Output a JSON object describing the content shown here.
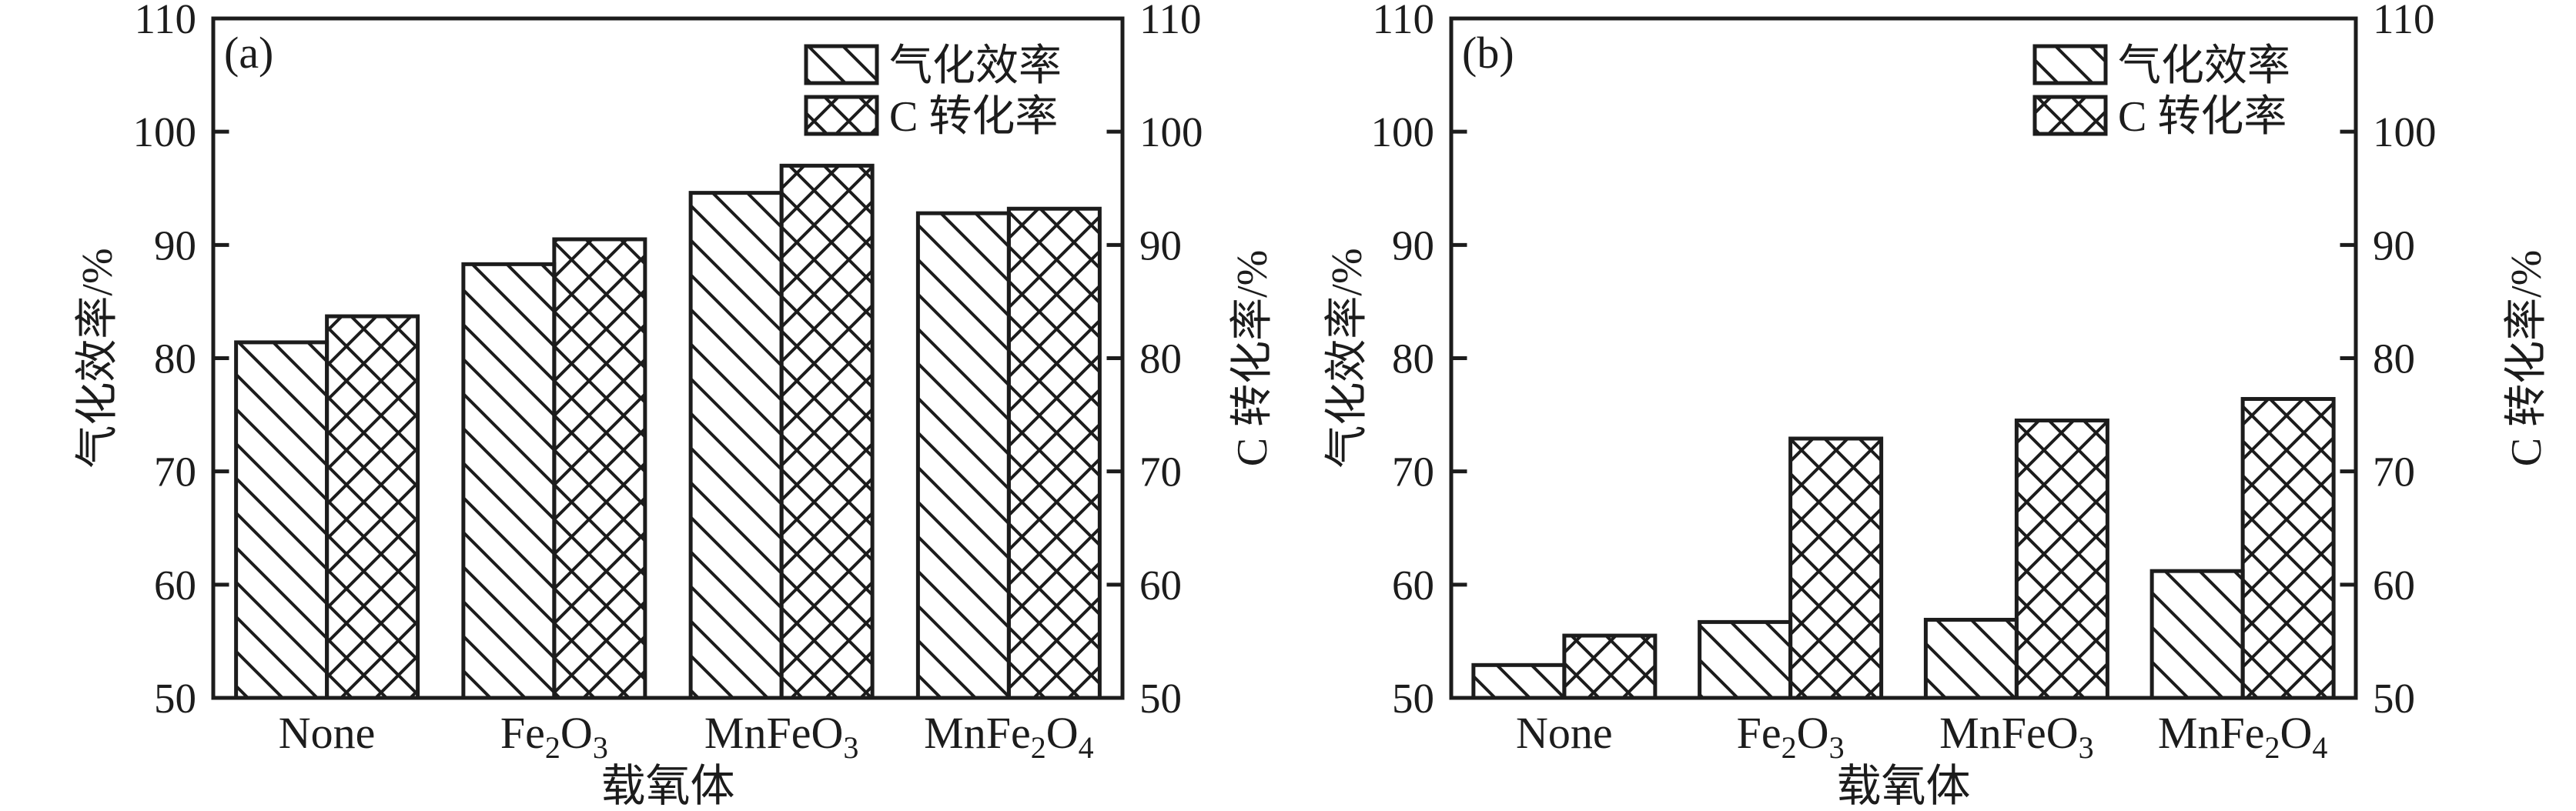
{
  "figure": {
    "background": "#ffffff",
    "ink": "#1c1c1c"
  },
  "chart_data": [
    {
      "type": "bar",
      "panel_label": "(a)",
      "categories": [
        "None",
        "Fe2O3",
        "MnFeO3",
        "MnFe2O4"
      ],
      "categories_rich": [
        [
          {
            "t": "None"
          }
        ],
        [
          {
            "t": "Fe"
          },
          {
            "t": "2",
            "sub": true
          },
          {
            "t": "O"
          },
          {
            "t": "3",
            "sub": true
          }
        ],
        [
          {
            "t": "MnFeO"
          },
          {
            "t": "3",
            "sub": true
          }
        ],
        [
          {
            "t": "MnFe"
          },
          {
            "t": "2",
            "sub": true
          },
          {
            "t": "O"
          },
          {
            "t": "4",
            "sub": true
          }
        ]
      ],
      "series": [
        {
          "name": "气化效率",
          "hatch": "diagonal",
          "axis": "left",
          "values": [
            81.4,
            88.3,
            94.6,
            92.8
          ]
        },
        {
          "name": "C 转化率",
          "hatch": "cross",
          "axis": "right",
          "values": [
            83.7,
            90.5,
            97.0,
            93.2
          ]
        }
      ],
      "xlabel": "载氧体",
      "ylabel_left": "气化效率/%",
      "ylabel_right": "C 转化率/%",
      "ylim": [
        50,
        110
      ],
      "yticks": [
        110,
        100,
        90,
        80,
        70,
        60,
        50
      ],
      "grid": false,
      "legend_position": "top-right"
    },
    {
      "type": "bar",
      "panel_label": "(b)",
      "categories": [
        "None",
        "Fe2O3",
        "MnFeO3",
        "MnFe2O4"
      ],
      "categories_rich": [
        [
          {
            "t": "None"
          }
        ],
        [
          {
            "t": "Fe"
          },
          {
            "t": "2",
            "sub": true
          },
          {
            "t": "O"
          },
          {
            "t": "3",
            "sub": true
          }
        ],
        [
          {
            "t": "MnFeO"
          },
          {
            "t": "3",
            "sub": true
          }
        ],
        [
          {
            "t": "MnFe"
          },
          {
            "t": "2",
            "sub": true
          },
          {
            "t": "O"
          },
          {
            "t": "4",
            "sub": true
          }
        ]
      ],
      "series": [
        {
          "name": "气化效率",
          "hatch": "diagonal",
          "axis": "left",
          "values": [
            52.9,
            56.7,
            56.9,
            61.2
          ]
        },
        {
          "name": "C 转化率",
          "hatch": "cross",
          "axis": "right",
          "values": [
            55.5,
            72.9,
            74.5,
            76.4
          ]
        }
      ],
      "xlabel": "载氧体",
      "ylabel_left": "气化效率/%",
      "ylabel_right": "C 转化率/%",
      "ylim": [
        50,
        110
      ],
      "yticks": [
        110,
        100,
        90,
        80,
        70,
        60,
        50
      ],
      "grid": false,
      "legend_position": "top-right"
    }
  ]
}
